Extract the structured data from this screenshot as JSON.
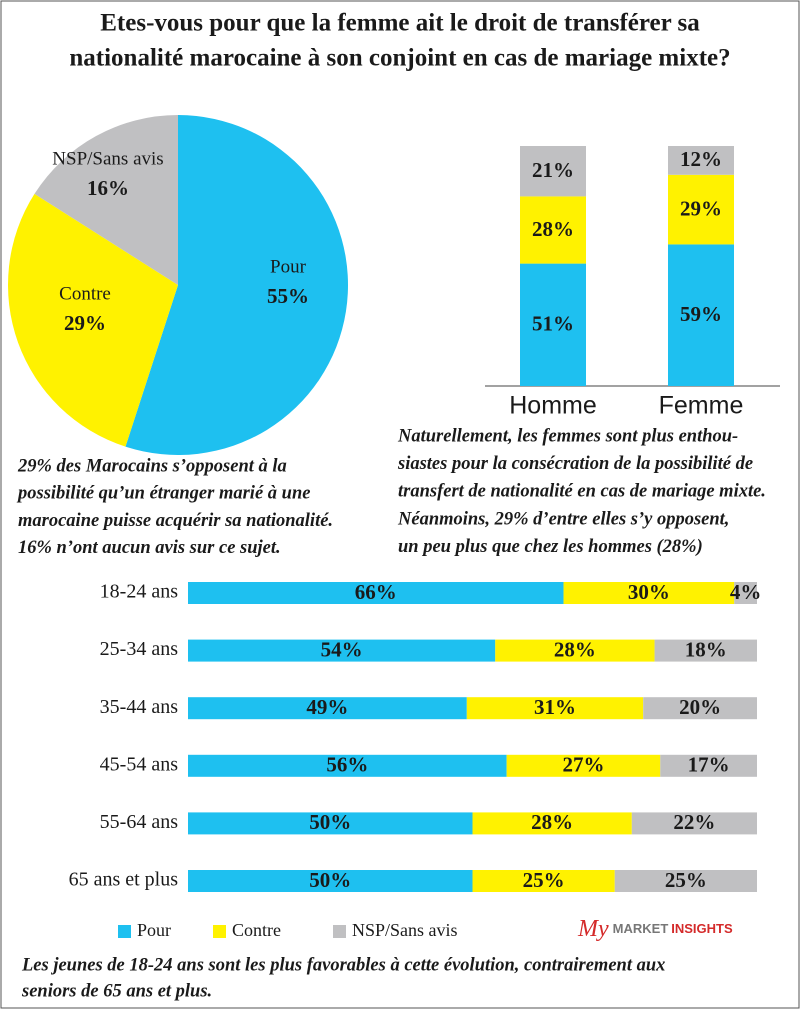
{
  "title": [
    "Etes-vous pour que la femme ait le droit de transférer sa",
    "nationalité marocaine à son conjoint en cas de mariage mixte?"
  ],
  "logo": {
    "my": "My",
    "market": "MARKET",
    "insights": "INSIGHTS"
  },
  "chart_data": [
    {
      "type": "pie",
      "labels": [
        "Pour",
        "Contre",
        "NSP/Sans avis"
      ],
      "values": [
        55,
        29,
        16
      ],
      "value_labels": [
        "55%",
        "29%",
        "16%"
      ],
      "colors": [
        "#1ec0f0",
        "#fff200",
        "#c0c0c2"
      ],
      "caption": [
        "29% des Marocains s’opposent à la",
        "possibilité qu’un étranger marié à une",
        "marocaine puisse acquérir sa nationalité.",
        "16% n’ont aucun avis sur ce sujet."
      ]
    },
    {
      "type": "stacked_bar",
      "categories": [
        "Homme",
        "Femme"
      ],
      "series": [
        {
          "color": "#1ec0f0",
          "values": [
            51,
            59
          ],
          "value_labels": [
            "51%",
            "59%"
          ]
        },
        {
          "color": "#fff200",
          "values": [
            28,
            29
          ],
          "value_labels": [
            "28%",
            "29%"
          ]
        },
        {
          "color": "#c0c0c2",
          "values": [
            21,
            12
          ],
          "value_labels": [
            "21%",
            "12%"
          ]
        }
      ],
      "caption": [
        "Naturellement, les femmes sont plus enthou-",
        "siastes pour la consécration de la possibilité de",
        "transfert de nationalité en cas de mariage mixte.",
        "Néanmoins, 29% d’entre elles s’y opposent,",
        "un peu plus que chez les hommes (28%)"
      ]
    },
    {
      "type": "stacked_barh",
      "categories": [
        "18-24 ans",
        "25-34 ans",
        "35-44 ans",
        "45-54 ans",
        "55-64 ans",
        "65 ans et plus"
      ],
      "series": [
        {
          "name": "Pour",
          "color": "#1ec0f0",
          "values": [
            66,
            54,
            49,
            56,
            50,
            50
          ],
          "value_labels": [
            "66%",
            "54%",
            "49%",
            "56%",
            "50%",
            "50%"
          ]
        },
        {
          "name": "Contre",
          "color": "#fff200",
          "values": [
            30,
            28,
            31,
            27,
            28,
            25
          ],
          "value_labels": [
            "30%",
            "28%",
            "31%",
            "27%",
            "28%",
            "25%"
          ]
        },
        {
          "name": "NSP/Sans avis",
          "color": "#c0c0c2",
          "values": [
            4,
            18,
            20,
            17,
            22,
            25
          ],
          "value_labels": [
            "4%",
            "18%",
            "20%",
            "17%",
            "22%",
            "25%"
          ]
        }
      ],
      "caption": [
        "Les jeunes de 18-24 ans sont les plus favorables à cette évolution, contrairement aux",
        "seniors de 65 ans et plus."
      ]
    }
  ]
}
